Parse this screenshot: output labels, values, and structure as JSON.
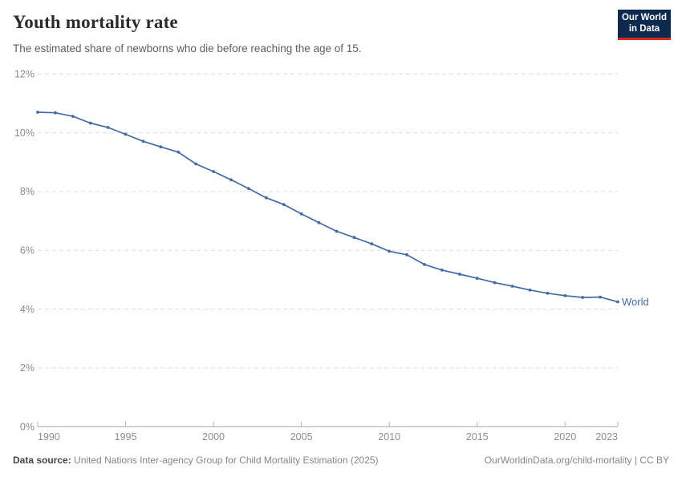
{
  "header": {
    "title": "Youth mortality rate",
    "subtitle": "The estimated share of newborns who die before reaching the age of 15."
  },
  "logo": {
    "line1": "Our World",
    "line2": "in Data",
    "background": "#0d2950",
    "accent": "#d92a20"
  },
  "chart_data": {
    "type": "line",
    "title": "Youth mortality rate",
    "subtitle": "The estimated share of newborns who die before reaching the age of 15.",
    "xlabel": "",
    "ylabel": "",
    "xlim": [
      1990,
      2023
    ],
    "ylim": [
      0,
      12
    ],
    "grid": "horizontal-dashed",
    "legend_position": "end-of-line-label",
    "x": [
      1990,
      1991,
      1992,
      1993,
      1994,
      1995,
      1996,
      1997,
      1998,
      1999,
      2000,
      2001,
      2002,
      2003,
      2004,
      2005,
      2006,
      2007,
      2008,
      2009,
      2010,
      2011,
      2012,
      2013,
      2014,
      2015,
      2016,
      2017,
      2018,
      2019,
      2020,
      2021,
      2022,
      2023
    ],
    "series": [
      {
        "name": "World",
        "color": "#4569a8",
        "values": [
          10.7,
          10.68,
          10.56,
          10.33,
          10.18,
          9.95,
          9.71,
          9.52,
          9.34,
          8.94,
          8.68,
          8.4,
          8.1,
          7.79,
          7.56,
          7.24,
          6.94,
          6.65,
          6.44,
          6.22,
          5.97,
          5.85,
          5.52,
          5.33,
          5.19,
          5.05,
          4.9,
          4.78,
          4.65,
          4.54,
          4.46,
          4.4,
          4.41,
          4.25
        ]
      }
    ],
    "y_ticks": [
      {
        "v": 0,
        "label": "0%"
      },
      {
        "v": 2,
        "label": "2%"
      },
      {
        "v": 4,
        "label": "4%"
      },
      {
        "v": 6,
        "label": "6%"
      },
      {
        "v": 8,
        "label": "8%"
      },
      {
        "v": 10,
        "label": "10%"
      },
      {
        "v": 12,
        "label": "12%"
      }
    ],
    "x_ticks": [
      {
        "v": 1990,
        "label": "1990"
      },
      {
        "v": 1995,
        "label": "1995"
      },
      {
        "v": 2000,
        "label": "2000"
      },
      {
        "v": 2005,
        "label": "2005"
      },
      {
        "v": 2010,
        "label": "2010"
      },
      {
        "v": 2015,
        "label": "2015"
      },
      {
        "v": 2020,
        "label": "2020"
      },
      {
        "v": 2023,
        "label": "2023"
      }
    ],
    "end_label": "World"
  },
  "colors": {
    "series_world": "#4569a8",
    "gridline": "#dcdcdc",
    "axis_line": "#a6a6a6",
    "tick_mark": "#b5b5b5",
    "tick_label": "#8c8c8c",
    "title": "#2b2b2b",
    "subtitle": "#5e5e5e"
  },
  "footer": {
    "source_label": "Data source:",
    "source_value": "United Nations Inter-agency Group for Child Mortality Estimation (2025)",
    "attribution": "OurWorldinData.org/child-mortality | CC BY"
  }
}
